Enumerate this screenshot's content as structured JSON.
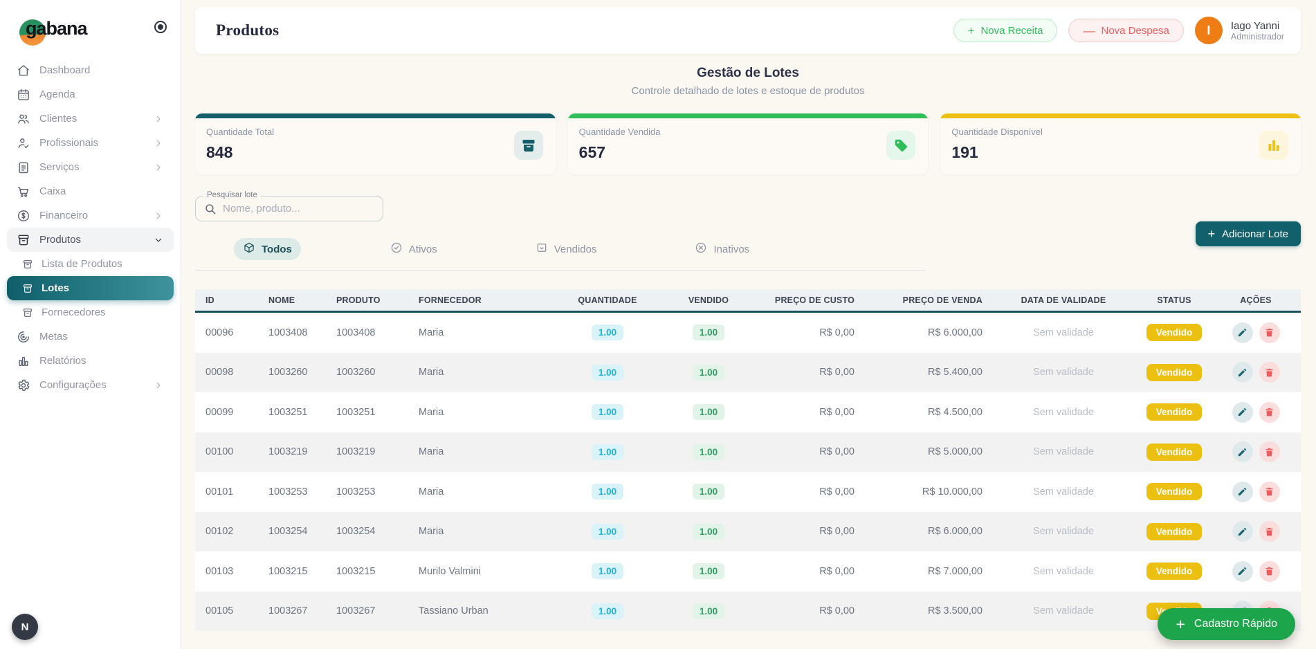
{
  "app": {
    "brand": "gabana"
  },
  "sidebar": {
    "items": [
      {
        "label": "Dashboard",
        "icon": "home"
      },
      {
        "label": "Agenda",
        "icon": "calendar"
      },
      {
        "label": "Clientes",
        "icon": "users",
        "chevron": "right"
      },
      {
        "label": "Profissionais",
        "icon": "user-check",
        "chevron": "right"
      },
      {
        "label": "Serviços",
        "icon": "clipboard",
        "chevron": "right"
      },
      {
        "label": "Caixa",
        "icon": "cart"
      },
      {
        "label": "Financeiro",
        "icon": "dollar",
        "chevron": "right"
      },
      {
        "label": "Produtos",
        "icon": "box",
        "chevron": "down",
        "expanded": true
      },
      {
        "label": "Lista de Produtos",
        "icon": "box",
        "sub": true
      },
      {
        "label": "Lotes",
        "icon": "box",
        "sub": true,
        "active": true
      },
      {
        "label": "Fornecedores",
        "icon": "box",
        "sub": true
      },
      {
        "label": "Metas",
        "icon": "target"
      },
      {
        "label": "Relatórios",
        "icon": "chart"
      },
      {
        "label": "Configurações",
        "icon": "gear",
        "chevron": "right"
      }
    ],
    "floating_initial": "N"
  },
  "header": {
    "title": "Produtos",
    "nova_receita": "Nova Receita",
    "nova_despesa": "Nova Despesa",
    "user": {
      "initial": "I",
      "name": "Iago Yanni",
      "role": "Administrador"
    }
  },
  "page": {
    "title": "Gestão de Lotes",
    "subtitle": "Controle detalhado de lotes e estoque de produtos"
  },
  "stats": [
    {
      "label": "Quantidade Total",
      "value": "848",
      "accent": "#135e68",
      "icon": "archive-filled",
      "icon_bg": "#e3edec",
      "icon_color": "#155f6b"
    },
    {
      "label": "Quantidade Vendida",
      "value": "657",
      "accent": "#2ebd59",
      "icon": "tag-filled",
      "icon_bg": "#e4f7ea",
      "icon_color": "#2ebd59"
    },
    {
      "label": "Quantidade Disponível",
      "value": "191",
      "accent": "#edc215",
      "icon": "chart-filled",
      "icon_bg": "#fdf6dd",
      "icon_color": "#edc215"
    }
  ],
  "search": {
    "label": "Pesquisar lote",
    "placeholder": "Nome, produto..."
  },
  "filters": [
    {
      "label": "Todos",
      "icon": "cube",
      "active": true
    },
    {
      "label": "Ativos",
      "icon": "check-circle",
      "active": false
    },
    {
      "label": "Vendidos",
      "icon": "tray",
      "active": false
    },
    {
      "label": "Inativos",
      "icon": "x-circle",
      "active": false
    }
  ],
  "add_button_label": "Adicionar Lote",
  "table": {
    "columns": [
      "ID",
      "NOME",
      "PRODUTO",
      "FORNECEDOR",
      "QUANTIDADE",
      "VENDIDO",
      "PREÇO DE CUSTO",
      "PREÇO DE VENDA",
      "DATA DE VALIDADE",
      "STATUS",
      "AÇÕES"
    ],
    "rows": [
      {
        "id": "00096",
        "nome": "1003408",
        "produto": "1003408",
        "fornecedor": "Maria",
        "quantidade": "1.00",
        "vendido": "1.00",
        "preco_custo": "R$ 0,00",
        "preco_venda": "R$ 6.000,00",
        "validade": "Sem validade",
        "status": "Vendido"
      },
      {
        "id": "00098",
        "nome": "1003260",
        "produto": "1003260",
        "fornecedor": "Maria",
        "quantidade": "1.00",
        "vendido": "1.00",
        "preco_custo": "R$ 0,00",
        "preco_venda": "R$ 5.400,00",
        "validade": "Sem validade",
        "status": "Vendido"
      },
      {
        "id": "00099",
        "nome": "1003251",
        "produto": "1003251",
        "fornecedor": "Maria",
        "quantidade": "1.00",
        "vendido": "1.00",
        "preco_custo": "R$ 0,00",
        "preco_venda": "R$ 4.500,00",
        "validade": "Sem validade",
        "status": "Vendido"
      },
      {
        "id": "00100",
        "nome": "1003219",
        "produto": "1003219",
        "fornecedor": "Maria",
        "quantidade": "1.00",
        "vendido": "1.00",
        "preco_custo": "R$ 0,00",
        "preco_venda": "R$ 5.000,00",
        "validade": "Sem validade",
        "status": "Vendido"
      },
      {
        "id": "00101",
        "nome": "1003253",
        "produto": "1003253",
        "fornecedor": "Maria",
        "quantidade": "1.00",
        "vendido": "1.00",
        "preco_custo": "R$ 0,00",
        "preco_venda": "R$ 10.000,00",
        "validade": "Sem validade",
        "status": "Vendido"
      },
      {
        "id": "00102",
        "nome": "1003254",
        "produto": "1003254",
        "fornecedor": "Maria",
        "quantidade": "1.00",
        "vendido": "1.00",
        "preco_custo": "R$ 0,00",
        "preco_venda": "R$ 6.000,00",
        "validade": "Sem validade",
        "status": "Vendido"
      },
      {
        "id": "00103",
        "nome": "1003215",
        "produto": "1003215",
        "fornecedor": "Murilo Valmini",
        "quantidade": "1.00",
        "vendido": "1.00",
        "preco_custo": "R$ 0,00",
        "preco_venda": "R$ 7.000,00",
        "validade": "Sem validade",
        "status": "Vendido"
      },
      {
        "id": "00105",
        "nome": "1003267",
        "produto": "1003267",
        "fornecedor": "Tassiano Urban",
        "quantidade": "1.00",
        "vendido": "1.00",
        "preco_custo": "R$ 0,00",
        "preco_venda": "R$ 3.500,00",
        "validade": "Sem validade",
        "status": "Vendido"
      }
    ]
  },
  "fab_label": "Cadastro Rápido",
  "theme": {
    "primary_teal": "#11616d",
    "green": "#2ebd59",
    "red": "#f25c5c",
    "amber": "#ecc011",
    "background": "#fbf7f1"
  }
}
